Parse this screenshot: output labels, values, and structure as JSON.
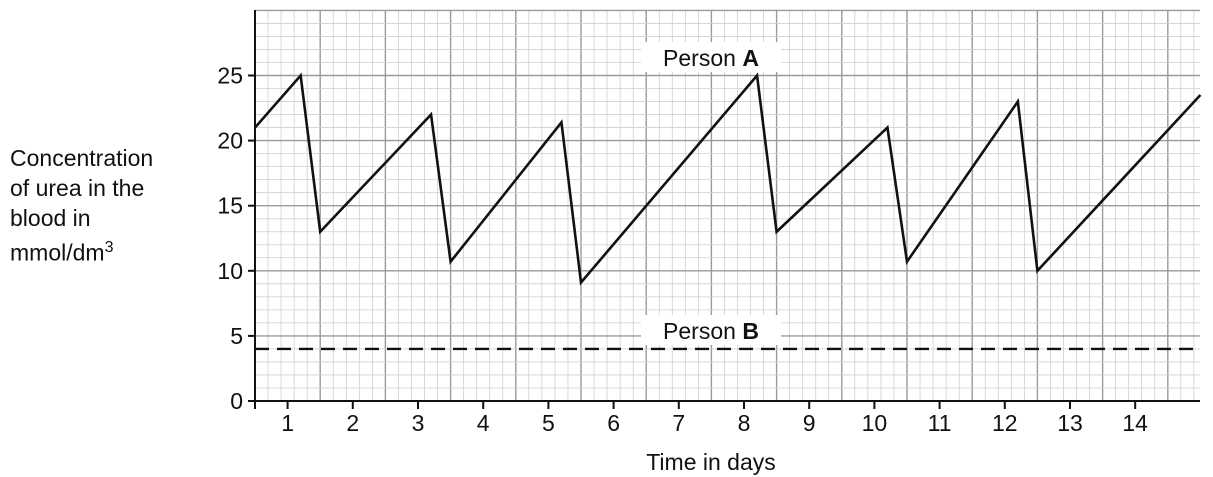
{
  "chart_data": {
    "type": "line",
    "title": "",
    "xlabel": "Time in days",
    "ylabel": {
      "lines": [
        "Concentration",
        "of urea in the",
        "blood in"
      ],
      "unit_base": "mmol/dm",
      "unit_exp": "3"
    },
    "xlim": [
      0,
      14.5
    ],
    "ylim": [
      0,
      30
    ],
    "y_ticks": [
      0,
      5,
      10,
      15,
      20,
      25
    ],
    "x_tick_labels": [
      "1",
      "2",
      "3",
      "4",
      "5",
      "6",
      "7",
      "8",
      "9",
      "10",
      "11",
      "12",
      "13",
      "14"
    ],
    "grid": true,
    "series": [
      {
        "name": "Person A",
        "label_prefix": "Person ",
        "label_bold": "A",
        "style": "solid",
        "x": [
          0,
          0.7,
          1.0,
          2.7,
          3.0,
          4.7,
          5.0,
          7.7,
          8.0,
          9.7,
          10.0,
          11.7,
          12.0,
          14.5
        ],
        "y": [
          21,
          25,
          13,
          22,
          10.7,
          21.4,
          9.1,
          25,
          13,
          21,
          10.7,
          23,
          10,
          23.5
        ]
      },
      {
        "name": "Person B",
        "label_prefix": "Person ",
        "label_bold": "B",
        "style": "dashed",
        "x": [
          0,
          14.5
        ],
        "y": [
          4,
          4
        ]
      }
    ]
  }
}
